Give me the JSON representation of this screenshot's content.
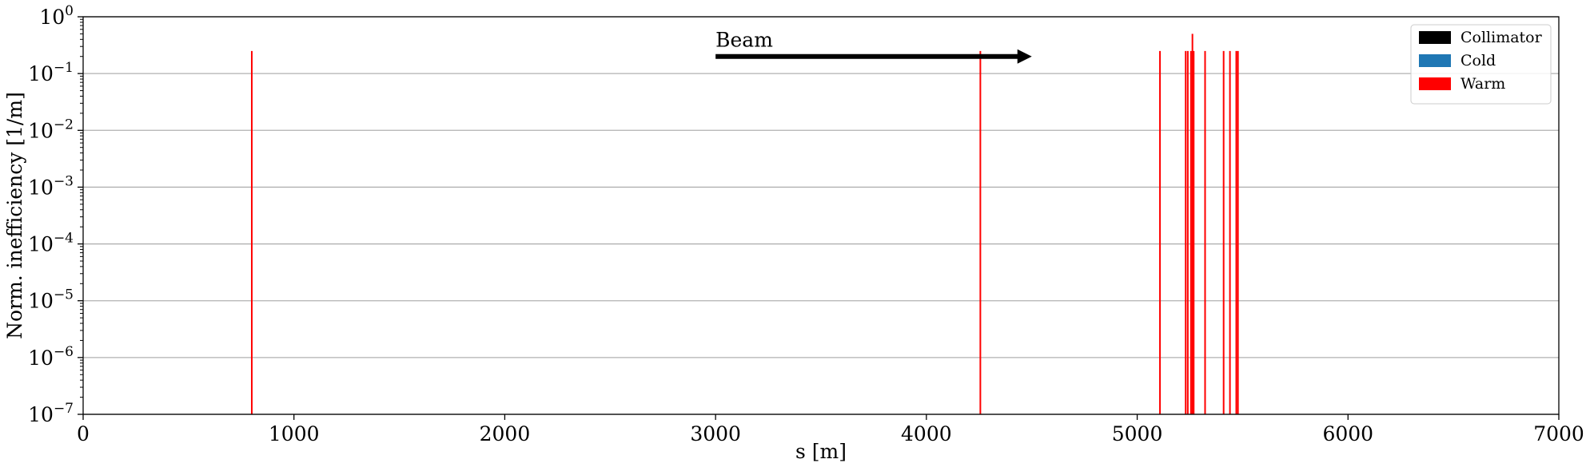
{
  "chart_data": {
    "type": "bar",
    "xlabel": "s [m]",
    "ylabel": "Norm. inefficiency [1/m]",
    "xlim": [
      0,
      7000
    ],
    "ylim": [
      1e-07,
      1
    ],
    "yscale": "log",
    "x_ticks": [
      0,
      1000,
      2000,
      3000,
      4000,
      5000,
      6000,
      7000
    ],
    "y_ticks": [
      {
        "base": "10",
        "exp": "−7",
        "value": 1e-07
      },
      {
        "base": "10",
        "exp": "−6",
        "value": 1e-06
      },
      {
        "base": "10",
        "exp": "−5",
        "value": 1e-05
      },
      {
        "base": "10",
        "exp": "−4",
        "value": 0.0001
      },
      {
        "base": "10",
        "exp": "−3",
        "value": 0.001
      },
      {
        "base": "10",
        "exp": "−2",
        "value": 0.01
      },
      {
        "base": "10",
        "exp": "−1",
        "value": 0.1
      },
      {
        "base": "10",
        "exp": "0",
        "value": 1
      }
    ],
    "grid": "horizontal",
    "legend": {
      "placement": "top-right",
      "entries": [
        {
          "label": "Collimator",
          "color": "#000000"
        },
        {
          "label": "Cold",
          "color": "#1f77b4"
        },
        {
          "label": "Warm",
          "color": "#ff0000"
        }
      ]
    },
    "annotation": {
      "text": "Beam",
      "arrow_from_x": 3000,
      "arrow_to_x": 4500,
      "arrow_y": 0.2,
      "color": "#000000"
    },
    "series": [
      {
        "name": "Warm",
        "color": "#ff0000",
        "points": [
          {
            "s": 800,
            "value": 0.25
          },
          {
            "s": 4256,
            "value": 0.25
          },
          {
            "s": 5108,
            "value": 0.25
          },
          {
            "s": 5230,
            "value": 0.25
          },
          {
            "s": 5240,
            "value": 0.25
          },
          {
            "s": 5255,
            "value": 0.25
          },
          {
            "s": 5262,
            "value": 0.5
          },
          {
            "s": 5268,
            "value": 0.25
          },
          {
            "s": 5322,
            "value": 0.25
          },
          {
            "s": 5410,
            "value": 0.25
          },
          {
            "s": 5440,
            "value": 0.25
          },
          {
            "s": 5470,
            "value": 0.25
          },
          {
            "s": 5478,
            "value": 0.25
          }
        ]
      }
    ]
  }
}
